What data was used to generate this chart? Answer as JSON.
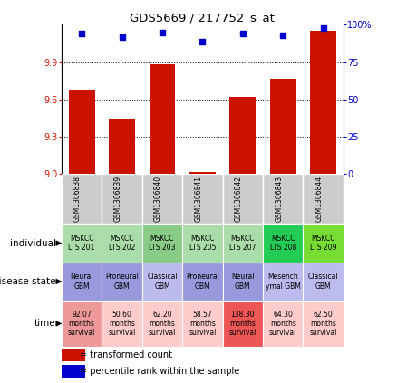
{
  "title": "GDS5669 / 217752_s_at",
  "samples": [
    "GSM1306838",
    "GSM1306839",
    "GSM1306840",
    "GSM1306841",
    "GSM1306842",
    "GSM1306843",
    "GSM1306844"
  ],
  "bar_values": [
    9.68,
    9.45,
    9.88,
    9.02,
    9.62,
    9.77,
    10.15
  ],
  "dot_values": [
    94,
    92,
    95,
    89,
    94,
    93,
    98
  ],
  "ylim_left": [
    9.0,
    10.2
  ],
  "ylim_right": [
    0,
    100
  ],
  "yticks_left": [
    9.0,
    9.3,
    9.6,
    9.9
  ],
  "yticks_right": [
    0,
    25,
    50,
    75,
    100
  ],
  "bar_color": "#cc1100",
  "dot_color": "#0000cc",
  "individual_labels": [
    "MSKCC\nLTS 201",
    "MSKCC\nLTS 202",
    "MSKCC\nLTS 203",
    "MSKCC\nLTS 205",
    "MSKCC\nLTS 207",
    "MSKCC\nLTS 208",
    "MSKCC\nLTS 209"
  ],
  "individual_colors": [
    "#aaddaa",
    "#aaddaa",
    "#88cc88",
    "#aaddaa",
    "#aaddaa",
    "#22cc55",
    "#77dd33"
  ],
  "disease_labels": [
    "Neural\nGBM",
    "Proneural\nGBM",
    "Classical\nGBM",
    "Proneural\nGBM",
    "Neural\nGBM",
    "Mesench\nymal GBM",
    "Classical\nGBM"
  ],
  "disease_colors": [
    "#9999dd",
    "#9999dd",
    "#bbbbee",
    "#9999dd",
    "#9999dd",
    "#bbbbee",
    "#bbbbee"
  ],
  "time_labels": [
    "92.07\nmonths\nsurvival",
    "50.60\nmonths\nsurvival",
    "62.20\nmonths\nsurvival",
    "58.57\nmonths\nsurvival",
    "138.30\nmonths\nsurvival",
    "64.30\nmonths\nsurvival",
    "62.50\nmonths\nsurvival"
  ],
  "time_colors": [
    "#ee9999",
    "#ffcccc",
    "#ffcccc",
    "#ffcccc",
    "#ee5555",
    "#ffcccc",
    "#ffcccc"
  ],
  "legend_labels": [
    "transformed count",
    "percentile rank within the sample"
  ],
  "legend_colors": [
    "#cc1100",
    "#0000cc"
  ],
  "gsm_bg": "#cccccc",
  "cell_border": "white"
}
